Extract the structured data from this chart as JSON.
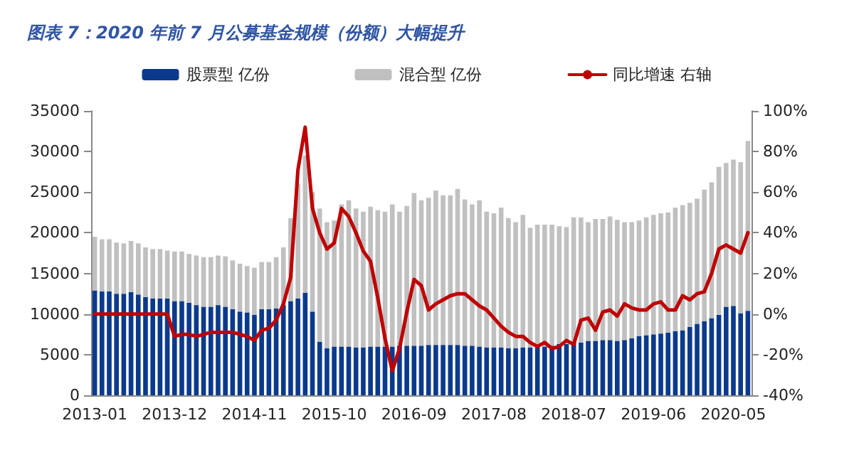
{
  "chart_data": {
    "type": "bar",
    "title": "图表 7：2020 年前 7 月公募基金规模（份额）大幅提升",
    "categories": [
      "2013-01",
      null,
      null,
      null,
      null,
      null,
      null,
      null,
      null,
      null,
      null,
      "2013-12",
      null,
      null,
      null,
      null,
      null,
      null,
      null,
      null,
      null,
      null,
      "2014-11",
      null,
      null,
      null,
      null,
      null,
      null,
      null,
      null,
      null,
      null,
      "2015-10",
      null,
      null,
      null,
      null,
      null,
      null,
      null,
      null,
      null,
      null,
      "2016-09",
      null,
      null,
      null,
      null,
      null,
      null,
      null,
      null,
      null,
      null,
      "2017-08",
      null,
      null,
      null,
      null,
      null,
      null,
      null,
      null,
      null,
      null,
      "2018-07",
      null,
      null,
      null,
      null,
      null,
      null,
      null,
      null,
      null,
      null,
      "2019-06",
      null,
      null,
      null,
      null,
      null,
      null,
      null,
      null,
      null,
      null,
      "2020-05",
      null,
      null
    ],
    "stacked": true,
    "series": [
      {
        "name": "股票型 亿份",
        "color": "#0b3a8c",
        "values": [
          12900,
          12800,
          12800,
          12500,
          12500,
          12700,
          12400,
          12100,
          11900,
          11900,
          11900,
          11600,
          11600,
          11400,
          11100,
          10900,
          10900,
          11100,
          10900,
          10600,
          10300,
          10200,
          9900,
          10600,
          10600,
          10700,
          11100,
          11600,
          11900,
          12600,
          10300,
          6600,
          5800,
          6000,
          6000,
          6000,
          5900,
          5900,
          6000,
          6000,
          6000,
          6000,
          6100,
          6100,
          6100,
          6100,
          6200,
          6200,
          6200,
          6200,
          6200,
          6100,
          6100,
          6000,
          5900,
          5900,
          5900,
          5800,
          5800,
          5900,
          5900,
          5900,
          6000,
          6100,
          6300,
          6300,
          6500,
          6500,
          6700,
          6700,
          6800,
          6800,
          6700,
          6800,
          7000,
          7300,
          7400,
          7500,
          7600,
          7700,
          7900,
          8000,
          8400,
          8800,
          9100,
          9500,
          9900,
          10900,
          11000,
          10100,
          10400
        ]
      },
      {
        "name": "混合型 亿份",
        "color": "#c0c0c0",
        "values": [
          6600,
          6400,
          6400,
          6300,
          6200,
          6300,
          6300,
          6100,
          6100,
          6100,
          5900,
          6100,
          6100,
          6000,
          6100,
          6100,
          6100,
          6100,
          6200,
          6000,
          5900,
          5700,
          5800,
          5800,
          5800,
          6300,
          7100,
          10200,
          14100,
          16900,
          14700,
          16400,
          15500,
          15500,
          17500,
          18000,
          17100,
          16700,
          17200,
          16800,
          16600,
          17500,
          16500,
          17200,
          18800,
          17900,
          18100,
          19000,
          18400,
          18400,
          19200,
          18000,
          17400,
          18000,
          16700,
          16500,
          17200,
          16000,
          15500,
          16300,
          14700,
          15100,
          15000,
          14900,
          14500,
          14400,
          15400,
          15400,
          14600,
          15000,
          14900,
          15200,
          14900,
          14500,
          14300,
          14200,
          14500,
          14700,
          14800,
          14800,
          15200,
          15400,
          15300,
          15400,
          16200,
          16700,
          18200,
          17700,
          18000,
          18600,
          20900
        ]
      },
      {
        "name": "同比增速 右轴",
        "type": "line",
        "axis": "y2",
        "color": "#c00000",
        "values": [
          0,
          0,
          0,
          0,
          0,
          0,
          0,
          0,
          0,
          0,
          0,
          -11,
          -10,
          -10,
          -11,
          -10,
          -9,
          -9,
          -9,
          -9,
          -10,
          -11,
          -13,
          -8,
          -7,
          -3,
          5,
          18,
          71,
          92,
          52,
          40,
          32,
          35,
          52,
          48,
          40,
          31,
          26,
          8,
          -12,
          -28,
          -17,
          1,
          17,
          14,
          2,
          5,
          7,
          9,
          10,
          10,
          7,
          4,
          2,
          -2,
          -6,
          -9,
          -11,
          -11,
          -14,
          -16,
          -14,
          -17,
          -16,
          -13,
          -15,
          -3,
          -2,
          -8,
          1,
          2,
          -1,
          5,
          3,
          2,
          2,
          5,
          6,
          2,
          2,
          9,
          7,
          10,
          11,
          20,
          32,
          34,
          32,
          30,
          40
        ]
      }
    ],
    "ylim": [
      0,
      35000
    ],
    "yticks": [
      0,
      5000,
      10000,
      15000,
      20000,
      25000,
      30000,
      35000
    ],
    "y2lim": [
      -40,
      100
    ],
    "y2ticks": [
      {
        "value": -40,
        "label": "-40%"
      },
      {
        "value": -20,
        "label": "-20%"
      },
      {
        "value": 0,
        "label": "0%"
      },
      {
        "value": 20,
        "label": "20%"
      },
      {
        "value": 40,
        "label": "40%"
      },
      {
        "value": 60,
        "label": "60%"
      },
      {
        "value": 80,
        "label": "80%"
      },
      {
        "value": 100,
        "label": "100%"
      }
    ],
    "legend": "top",
    "marker": "none",
    "line_style": "solid",
    "grid": false
  }
}
